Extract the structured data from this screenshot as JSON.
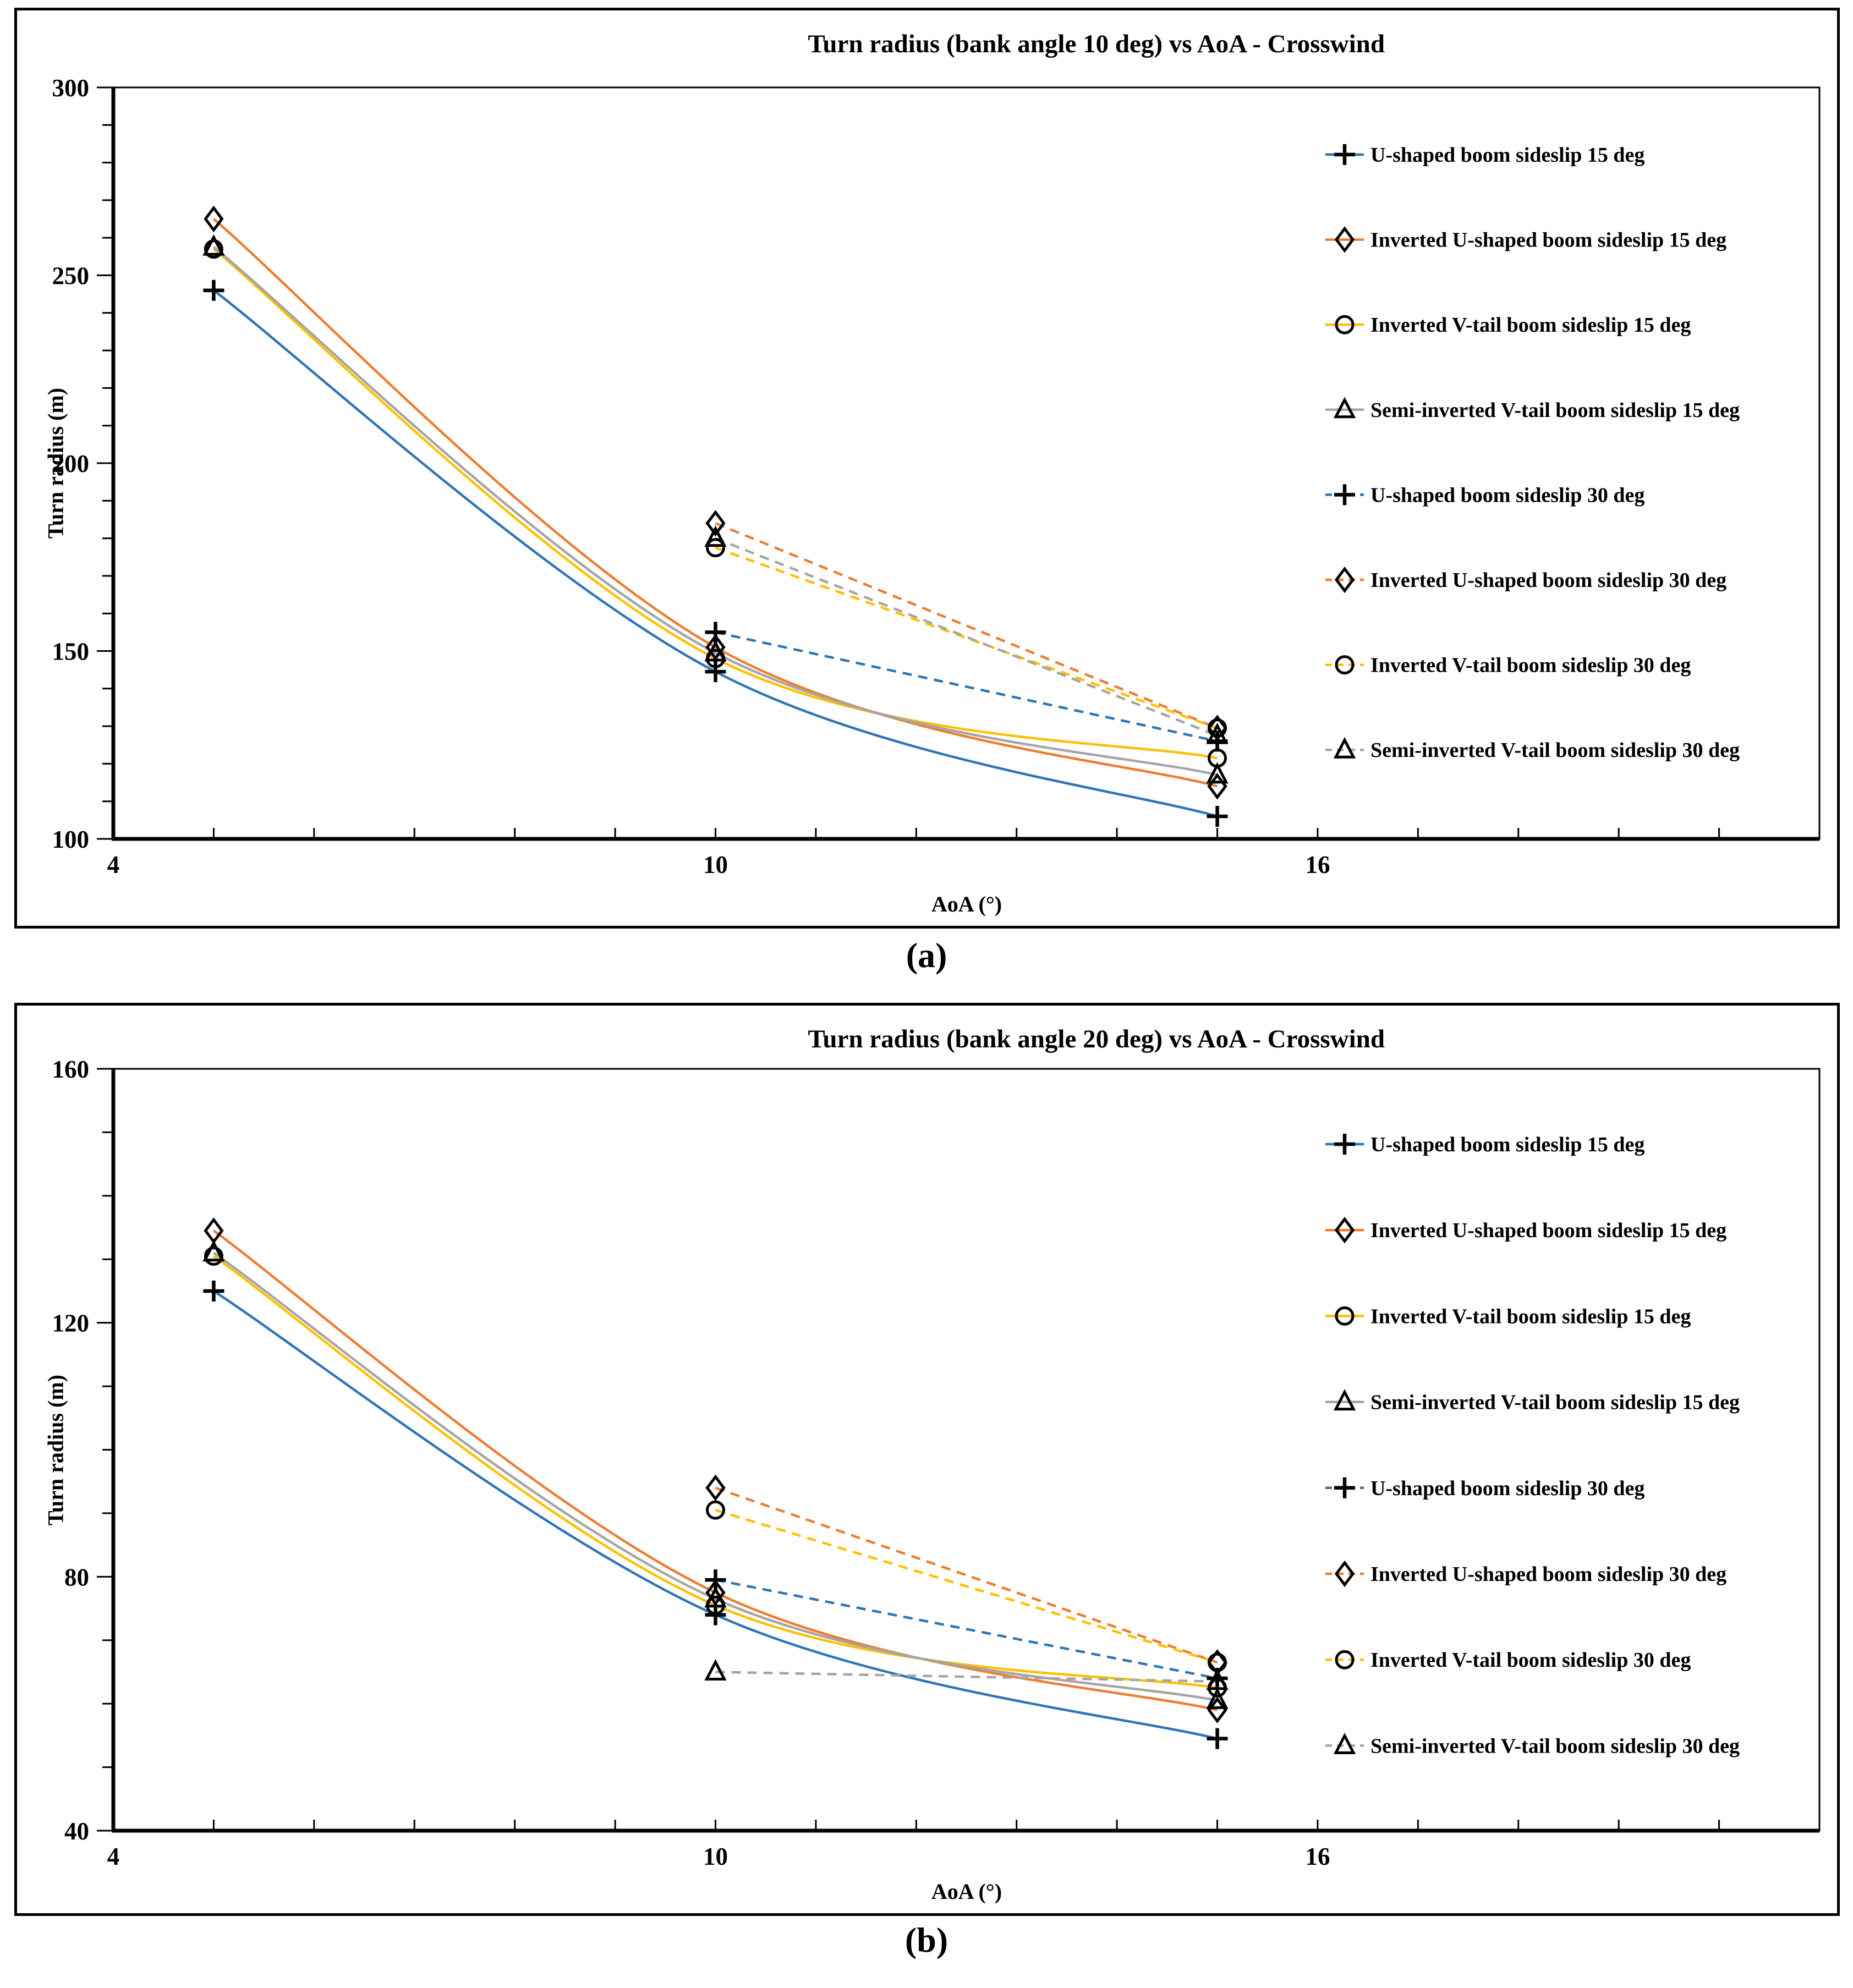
{
  "page": {
    "background": "#ffffff"
  },
  "colors": {
    "blue": "#2E75B6",
    "orange": "#ED7D31",
    "gold": "#FFC000",
    "gray": "#A5A5A5",
    "marker_outline": "#000000",
    "frame": "#000000"
  },
  "chart_data": [
    {
      "id": "a",
      "type": "line",
      "title": "Turn radius (bank angle 10 deg) vs AoA - Crosswind",
      "caption": "(a)",
      "xlabel": "AoA (°)",
      "ylabel": "Turn radius (m)",
      "x_range": [
        4,
        21
      ],
      "x_ticks_labeled": [
        4,
        10,
        16
      ],
      "x_minor_step": 1,
      "y_range": [
        100,
        300
      ],
      "y_major_step": 50,
      "y_minor_step": 10,
      "y_tick_labels": [
        "100",
        "150",
        "200",
        "250",
        "300"
      ],
      "grid": false,
      "legend_position": "right",
      "series": [
        {
          "name": "U-shaped boom sideslip 15 deg",
          "color": "blue",
          "line": "solid",
          "marker": "plus",
          "x": [
            5,
            10,
            15
          ],
          "y": [
            246,
            144.5,
            106
          ]
        },
        {
          "name": "Inverted U-shaped boom sideslip 15 deg",
          "color": "orange",
          "line": "solid",
          "marker": "diamond",
          "x": [
            5,
            10,
            15
          ],
          "y": [
            265,
            151,
            114
          ]
        },
        {
          "name": "Inverted V-tail boom sideslip 15 deg",
          "color": "gold",
          "line": "solid",
          "marker": "circle",
          "x": [
            5,
            10,
            15
          ],
          "y": [
            257,
            148,
            121.5
          ]
        },
        {
          "name": "Semi-inverted V-tail boom sideslip 15 deg",
          "color": "gray",
          "line": "solid",
          "marker": "triangle",
          "x": [
            5,
            10,
            15
          ],
          "y": [
            257.5,
            149.5,
            117
          ]
        },
        {
          "name": "U-shaped boom sideslip 30 deg",
          "color": "blue",
          "line": "dashed",
          "marker": "plus",
          "x": [
            10,
            15
          ],
          "y": [
            155,
            126
          ]
        },
        {
          "name": "Inverted U-shaped boom sideslip 30 deg",
          "color": "orange",
          "line": "dashed",
          "marker": "diamond",
          "x": [
            10,
            15
          ],
          "y": [
            184,
            129.5
          ]
        },
        {
          "name": "Inverted V-tail boom sideslip 30 deg",
          "color": "gold",
          "line": "dashed",
          "marker": "circle",
          "x": [
            10,
            15
          ],
          "y": [
            177.5,
            129.5
          ]
        },
        {
          "name": "Semi-inverted V-tail boom sideslip 30 deg",
          "color": "gray",
          "line": "dashed",
          "marker": "triangle",
          "x": [
            10,
            15
          ],
          "y": [
            180,
            127.5
          ]
        }
      ]
    },
    {
      "id": "b",
      "type": "line",
      "title": "Turn radius (bank angle 20 deg) vs AoA - Crosswind",
      "caption": "(b)",
      "xlabel": "AoA (°)",
      "ylabel": "Turn radius (m)",
      "x_range": [
        4,
        21
      ],
      "x_ticks_labeled": [
        4,
        10,
        16
      ],
      "x_minor_step": 1,
      "y_range": [
        40,
        160
      ],
      "y_major_step": 40,
      "y_minor_step": 10,
      "y_tick_labels": [
        "40",
        "80",
        "120",
        "160"
      ],
      "grid": false,
      "legend_position": "right",
      "series": [
        {
          "name": "U-shaped boom sideslip 15 deg",
          "color": "blue",
          "line": "solid",
          "marker": "plus",
          "x": [
            5,
            10,
            15
          ],
          "y": [
            125,
            74,
            54.5
          ]
        },
        {
          "name": "Inverted U-shaped boom sideslip 15 deg",
          "color": "orange",
          "line": "solid",
          "marker": "diamond",
          "x": [
            5,
            10,
            15
          ],
          "y": [
            134.5,
            77.5,
            59
          ]
        },
        {
          "name": "Inverted V-tail boom sideslip 15 deg",
          "color": "gold",
          "line": "solid",
          "marker": "circle",
          "x": [
            5,
            10,
            15
          ],
          "y": [
            130.5,
            75.5,
            62.5
          ]
        },
        {
          "name": "Semi-inverted V-tail boom sideslip 15 deg",
          "color": "gray",
          "line": "solid",
          "marker": "triangle",
          "x": [
            5,
            10,
            15
          ],
          "y": [
            131,
            76.5,
            60.5
          ]
        },
        {
          "name": "U-shaped boom sideslip 30 deg",
          "color": "blue",
          "line": "dashed",
          "marker": "plus",
          "x": [
            10,
            15
          ],
          "y": [
            79.5,
            64
          ]
        },
        {
          "name": "Inverted U-shaped boom sideslip 30 deg",
          "color": "orange",
          "line": "dashed",
          "marker": "diamond",
          "x": [
            10,
            15
          ],
          "y": [
            94,
            66.5
          ]
        },
        {
          "name": "Inverted V-tail boom sideslip 30 deg",
          "color": "gold",
          "line": "dashed",
          "marker": "circle",
          "x": [
            10,
            15
          ],
          "y": [
            90.5,
            66.5
          ]
        },
        {
          "name": "Semi-inverted V-tail boom sideslip 30 deg",
          "color": "gray",
          "line": "dashed",
          "marker": "triangle",
          "x": [
            10,
            15
          ],
          "y": [
            65,
            63.5
          ]
        }
      ]
    }
  ]
}
